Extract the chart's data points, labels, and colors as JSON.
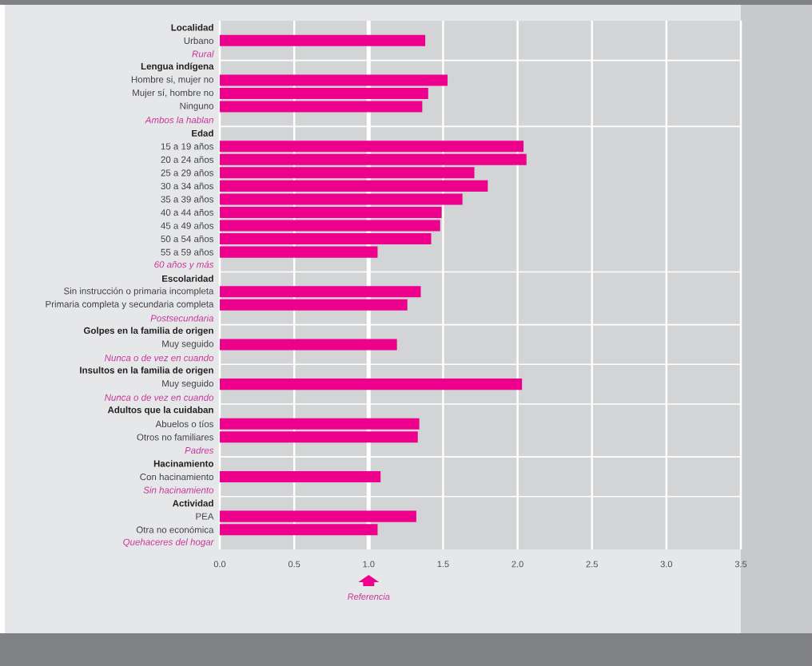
{
  "chart_data": {
    "type": "bar",
    "orientation": "horizontal",
    "categories": [
      "Localidad",
      "Urbano",
      "Rural",
      "Lengua indígena",
      "Hombre si, mujer no",
      "Mujer sí, hombre no",
      "Ninguno",
      "Ambos la hablan",
      "Edad",
      "15 a 19 años",
      "20 a 24 años",
      "25 a 29 años",
      "30 a 34 años",
      "35 a 39 años",
      "40 a 44 años",
      "45 a 49 años",
      "50 a 54 años",
      "55 a 59 años",
      "60 años y más",
      "Escolaridad",
      "Sin instrucción o primaria incompleta",
      "Primaria completa y secundaria completa",
      "Postsecundaria",
      "Golpes en la familia de origen",
      "Muy seguido",
      "Nunca o de vez en cuando",
      "Insultos en la familia de origen",
      "Muy seguido",
      "Nunca o de vez en cuando",
      "Adultos que la cuidaban",
      "Abuelos o tíos",
      "Otros no familiares",
      "Padres",
      "Hacinamiento",
      "Con hacinamiento",
      "Sin hacinamiento",
      "Actividad",
      "PEA",
      "Otra no económica",
      "Quehaceres del hogar"
    ],
    "values": [
      null,
      1.38,
      null,
      null,
      1.53,
      1.4,
      1.36,
      null,
      null,
      2.04,
      2.06,
      1.71,
      1.8,
      1.63,
      1.49,
      1.48,
      1.42,
      1.06,
      null,
      null,
      1.35,
      1.26,
      null,
      null,
      1.19,
      null,
      null,
      2.03,
      null,
      null,
      1.34,
      1.33,
      null,
      null,
      1.08,
      null,
      null,
      1.32,
      1.06,
      null
    ],
    "color": "#ec008c",
    "xlim": [
      0,
      3.5
    ],
    "xticks": [
      {
        "value": 0,
        "label": "0.0"
      },
      0.5,
      {
        "value": 1,
        "label": "1.0"
      },
      1.5,
      {
        "value": 2,
        "label": "2.0"
      },
      2.5,
      {
        "value": 3,
        "label": "3.0"
      },
      3.5
    ],
    "grid": true,
    "ref_lines": [
      {
        "axis": "x",
        "value": 1
      }
    ],
    "annotations": [
      "Referencia"
    ]
  }
}
